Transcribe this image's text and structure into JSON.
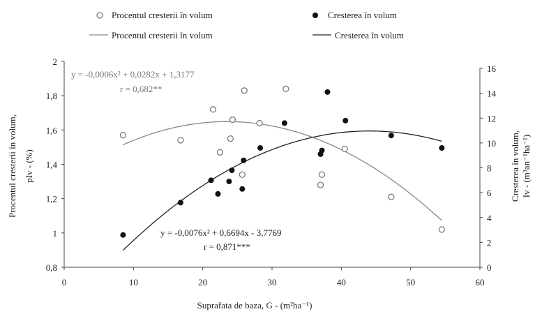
{
  "chart_data": {
    "type": "scatter",
    "xlabel": "Suprafata de baza,  G - (m²ha⁻¹)",
    "ylabel_left_line1": "Procentul cresterii în volum,",
    "ylabel_left_line2": "pIv - (%)",
    "ylabel_right_line1": "Cresterea în volum,",
    "ylabel_right_line2": "Iv - (m³an⁻¹ha⁻¹)",
    "xlim": [
      0,
      60
    ],
    "ylim_left": [
      0.8,
      2.0
    ],
    "ylim_right": [
      0,
      16
    ],
    "x_ticks": [
      0,
      10,
      20,
      30,
      40,
      50,
      60
    ],
    "x_tick_labels": [
      "0",
      "10",
      "20",
      "30",
      "40",
      "50",
      "60"
    ],
    "y_left_ticks": [
      0.8,
      1.0,
      1.2,
      1.4,
      1.6,
      1.8,
      2.0
    ],
    "y_left_tick_labels": [
      "0,8",
      "1",
      "1,2",
      "1,4",
      "1,6",
      "1,8",
      "2"
    ],
    "y_right_ticks": [
      0,
      2,
      4,
      6,
      8,
      10,
      12,
      14,
      16
    ],
    "y_right_tick_labels": [
      "0",
      "2",
      "4",
      "6",
      "8",
      "10",
      "12",
      "14",
      "16"
    ],
    "legend": {
      "placement": "top",
      "items": [
        {
          "label": "Procentul cresterii în volum",
          "kind": "open-circle"
        },
        {
          "label": "Cresterea în volum",
          "kind": "filled-circle"
        },
        {
          "label": "Procentul cresterii în volum",
          "kind": "gray-line"
        },
        {
          "label": "Cresterea în volum",
          "kind": "black-line"
        }
      ]
    },
    "series": [
      {
        "name": "Procentul cresterii în volum",
        "axis": "left",
        "marker": "open-circle",
        "color": "#7a7a7a",
        "x": [
          8.5,
          16.8,
          21.5,
          22.5,
          24,
          24.3,
          25.7,
          26,
          28.2,
          32,
          37,
          37.2,
          40.5,
          47.2,
          54.5
        ],
        "y": [
          1.57,
          1.54,
          1.72,
          1.47,
          1.55,
          1.66,
          1.34,
          1.83,
          1.64,
          1.84,
          1.28,
          1.34,
          1.49,
          1.21,
          1.02
        ]
      },
      {
        "name": "Cresterea în volum",
        "axis": "right",
        "marker": "filled-circle",
        "color": "#111111",
        "x": [
          8.5,
          16.8,
          21.2,
          22.2,
          23.8,
          24.2,
          25.7,
          25.9,
          28.3,
          31.8,
          37,
          37.2,
          38,
          40.6,
          47.2,
          54.5
        ],
        "y": [
          2.6,
          5.2,
          7.0,
          5.9,
          6.9,
          7.8,
          6.3,
          8.6,
          9.6,
          11.6,
          9.1,
          9.4,
          14.1,
          11.8,
          10.6,
          9.6
        ]
      }
    ],
    "fits": [
      {
        "axis": "left",
        "color": "#7a7a7a",
        "coefficients": [
          -0.0006,
          0.0282,
          1.3177
        ],
        "x_range": [
          8.5,
          54.5
        ],
        "equation": "y = -0,0006x² + 0,0282x + 1,3177",
        "r": "r = 0,682**"
      },
      {
        "axis": "right",
        "color": "#222222",
        "coefficients": [
          -0.0076,
          0.6694,
          -3.7769
        ],
        "x_range": [
          8.5,
          54.5
        ],
        "equation": "y = -0,0076x² + 0,6694x - 3,7769",
        "r": "r = 0,871***"
      }
    ],
    "grid": false
  }
}
